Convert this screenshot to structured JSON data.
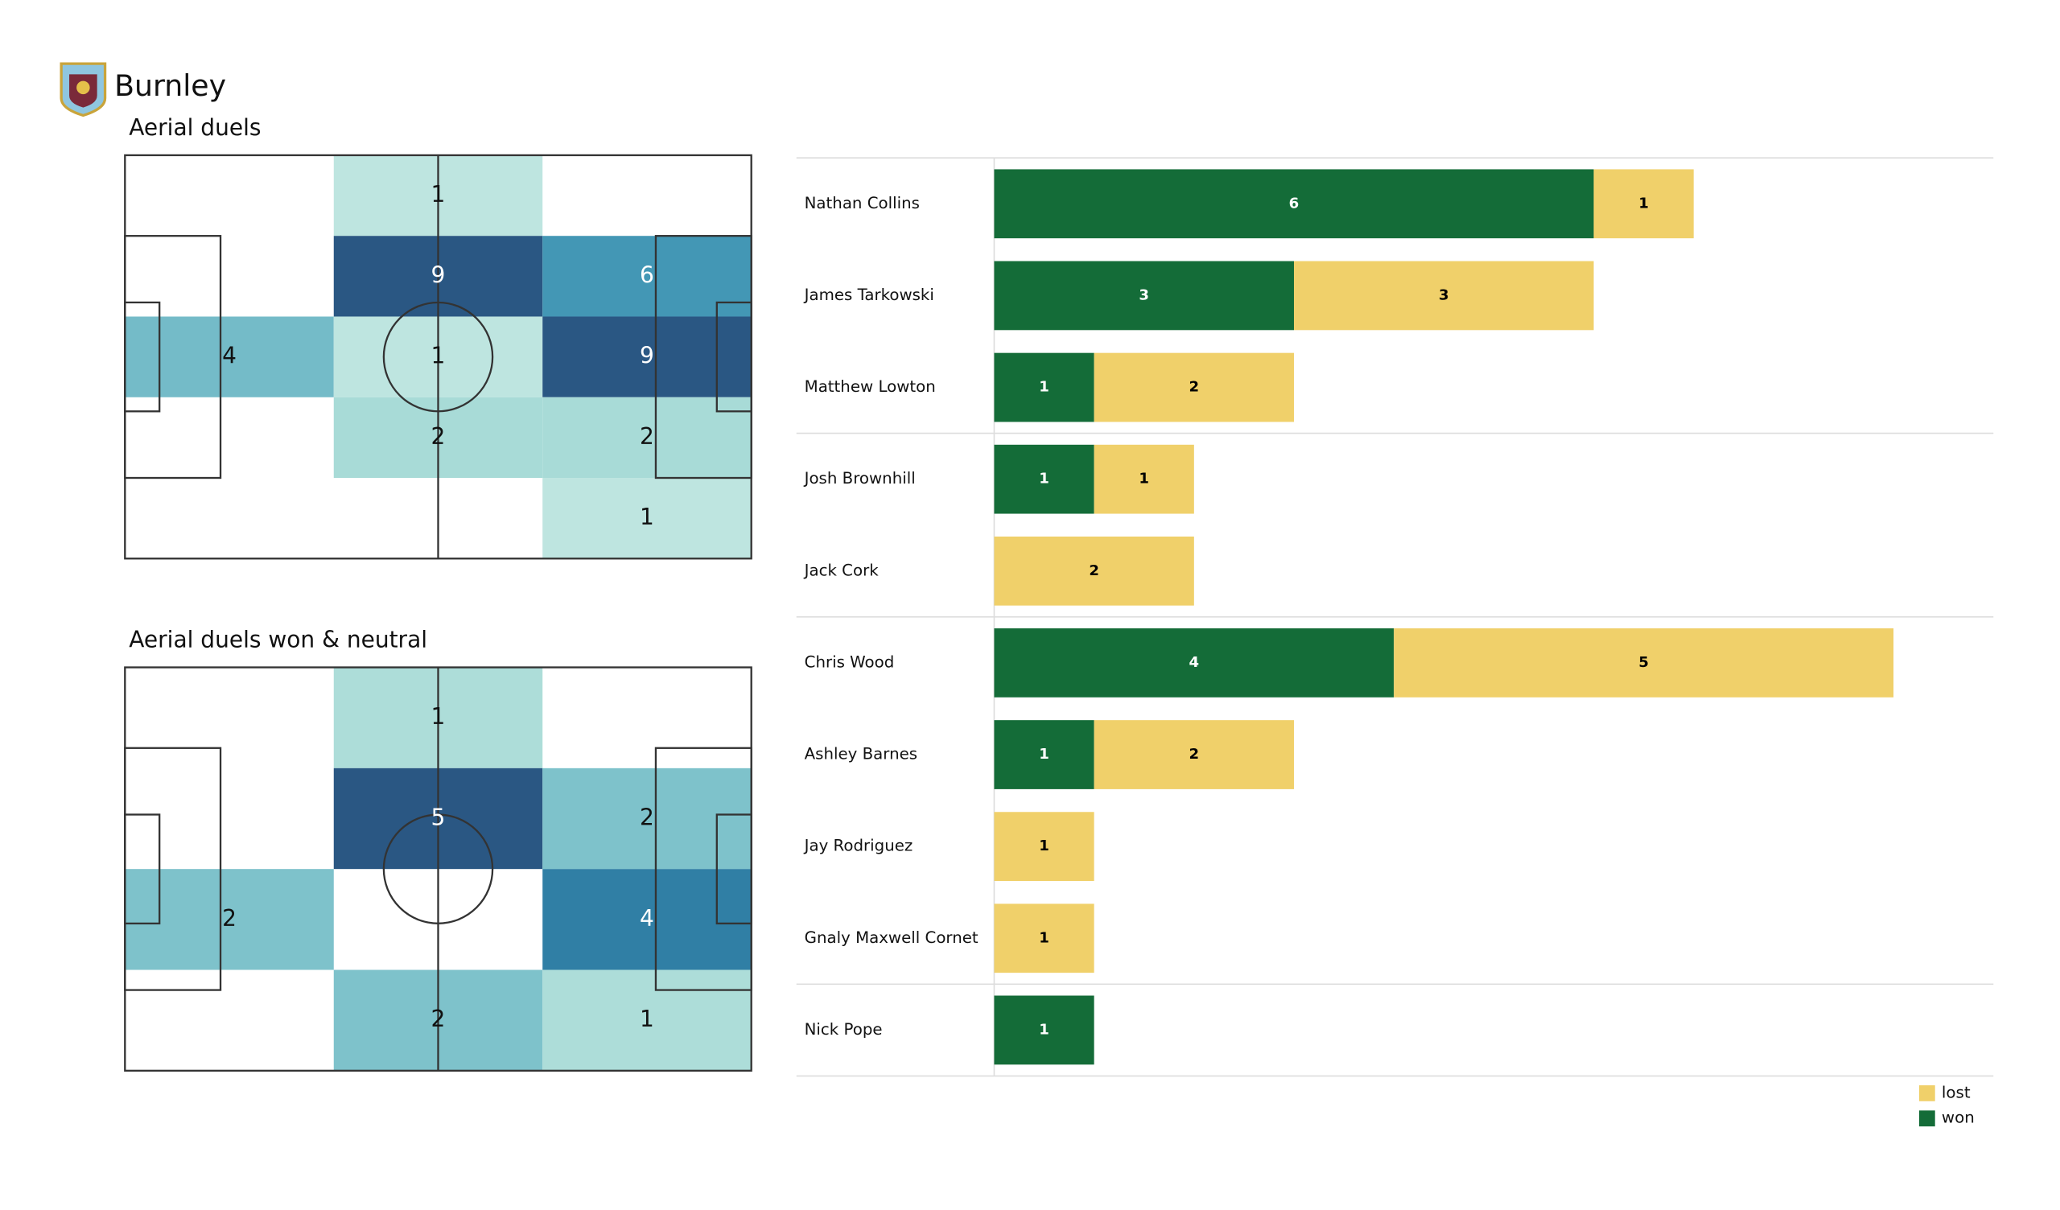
{
  "header": {
    "team": "Burnley"
  },
  "chart_data": [
    {
      "type": "heatmap",
      "title": "Aerial duels",
      "values": [
        [
          null,
          1,
          null
        ],
        [
          null,
          9,
          6
        ],
        [
          4,
          1,
          9
        ],
        [
          null,
          2,
          2
        ],
        [
          null,
          null,
          1
        ]
      ],
      "cmap": [
        "#d4efe8",
        "#a3d9d5",
        "#66b3c4",
        "#3189ae",
        "#2a5783"
      ]
    },
    {
      "type": "heatmap",
      "title": "Aerial duels won & neutral",
      "values": [
        [
          null,
          1,
          null
        ],
        [
          null,
          5,
          2
        ],
        [
          2,
          null,
          4
        ],
        [
          null,
          2,
          1
        ]
      ],
      "cmap": [
        "#d4efe8",
        "#a3d9d5",
        "#66b3c4",
        "#3189ae",
        "#2a5783"
      ]
    },
    {
      "type": "bar",
      "orientation": "horizontal",
      "stacked": true,
      "categories": [
        "Nathan Collins",
        "James  Tarkowski",
        "Matthew Lowton",
        "Josh Brownhill",
        "Jack Cork",
        "Chris Wood",
        "Ashley Barnes",
        "Jay Rodriguez",
        "Gnaly Maxwell Cornet",
        "Nick Pope"
      ],
      "series": [
        {
          "name": "won",
          "color": "#146c38",
          "label_color": "#ffffff",
          "values": [
            6,
            3,
            1,
            1,
            null,
            4,
            1,
            null,
            null,
            1
          ]
        },
        {
          "name": "lost",
          "color": "#f0d06a",
          "label_color": "#000000",
          "values": [
            1,
            3,
            2,
            1,
            2,
            5,
            2,
            1,
            1,
            null
          ]
        }
      ],
      "xlim": [
        0,
        10
      ],
      "legend": "lower right"
    }
  ]
}
